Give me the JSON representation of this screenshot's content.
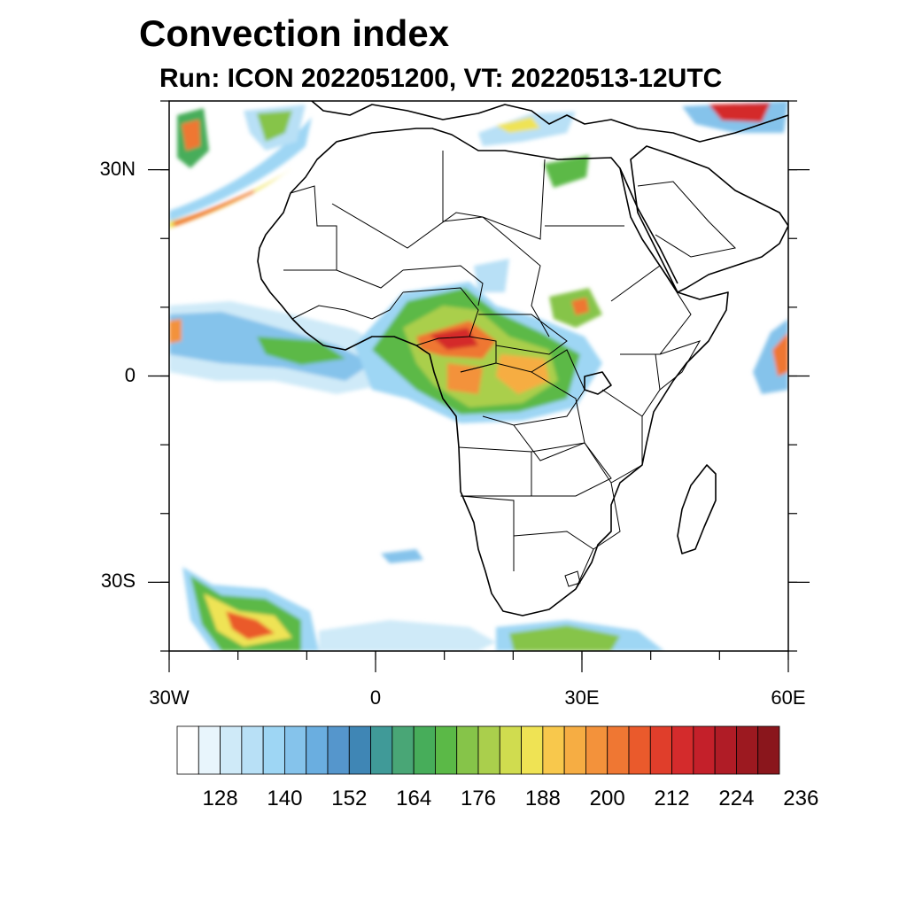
{
  "title": "Convection index",
  "subtitle": "Run: ICON 2022051200,  VT: 20220513-12UTC",
  "map": {
    "lon_range": [
      -30,
      60
    ],
    "lat_range": [
      -40,
      40
    ],
    "lat_ticks": [
      {
        "value": 30,
        "label": "30N"
      },
      {
        "value": 0,
        "label": "0"
      },
      {
        "value": -30,
        "label": "30S"
      }
    ],
    "lon_ticks": [
      {
        "value": -30,
        "label": "30W"
      },
      {
        "value": 0,
        "label": "0"
      },
      {
        "value": 30,
        "label": "30E"
      },
      {
        "value": 60,
        "label": "60E"
      }
    ]
  },
  "colorbar": {
    "colors": [
      "#ffffff",
      "#e8f5fc",
      "#cfeaf8",
      "#b8e0f6",
      "#9ed6f4",
      "#85c3eb",
      "#6aaee0",
      "#5596cc",
      "#3f86b5",
      "#409a98",
      "#49a676",
      "#47ad5a",
      "#5bb947",
      "#86c449",
      "#aacf4c",
      "#d0dc4f",
      "#efe354",
      "#f8c84c",
      "#f6ad43",
      "#f3923b",
      "#ef7733",
      "#ea5a2c",
      "#e03e2b",
      "#d42b2c",
      "#c4202a",
      "#b01c26",
      "#9c1920",
      "#8a161c"
    ],
    "tick_labels": [
      "128",
      "140",
      "152",
      "164",
      "176",
      "188",
      "200",
      "212",
      "224",
      "236"
    ]
  }
}
